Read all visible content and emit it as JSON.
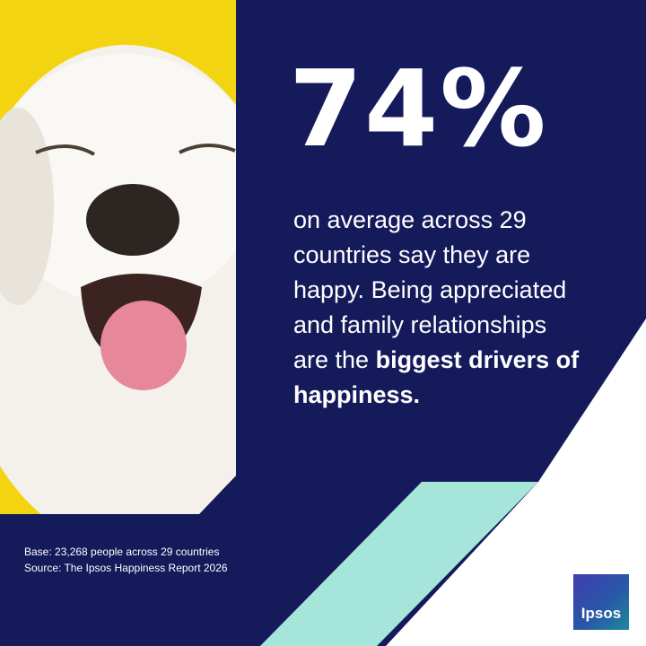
{
  "headline": {
    "stat": "74%"
  },
  "body": {
    "text": "on average across 29 countries say they are happy. Being appreciated and family relationships are the",
    "bold": "biggest drivers of happiness."
  },
  "footnote": {
    "base": "Base: 23,268 people across 29 countries",
    "source": "Source: The Ipsos Happiness Report 2026"
  },
  "logo": {
    "text": "Ipsos"
  }
}
